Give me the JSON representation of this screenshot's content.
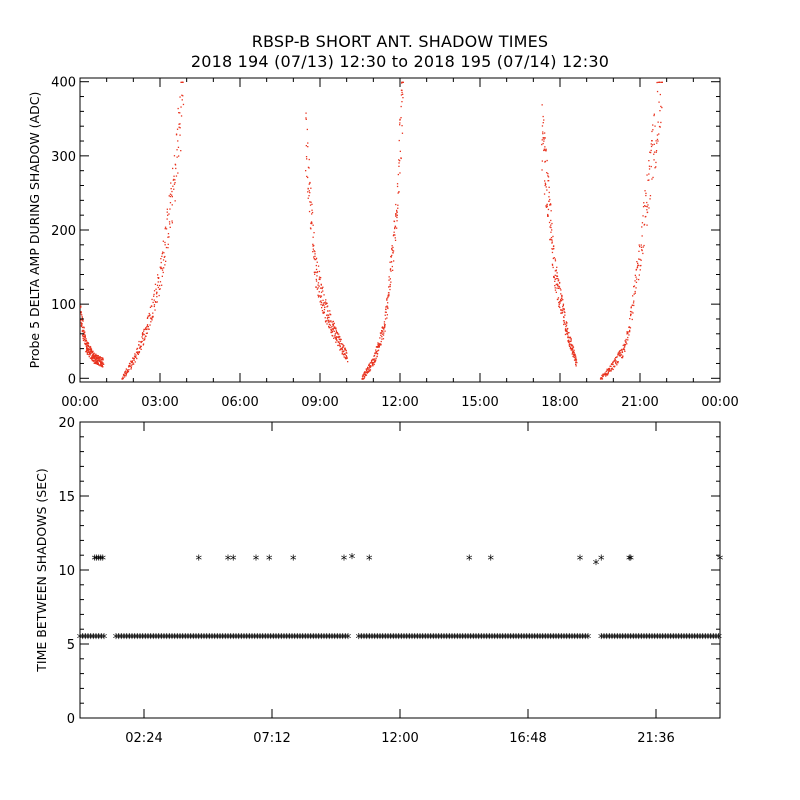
{
  "title": "RBSP-B SHORT ANT. SHADOW TIMES",
  "subtitle": "2018 194 (07/13) 12:30 to 2018 195 (07/14) 12:30",
  "chart_data": [
    {
      "type": "scatter",
      "ylabel": "Probe 5 DELTA AMP DURING SHADOW (ADC)",
      "xlabel": "",
      "x_unit": "hours",
      "xlim": [
        0,
        24
      ],
      "ylim": [
        -5,
        405
      ],
      "x_tick_labels": [
        "00:00",
        "03:00",
        "06:00",
        "09:00",
        "12:00",
        "15:00",
        "18:00",
        "21:00",
        "00:00"
      ],
      "y_tick_labels": [
        "0",
        "100",
        "200",
        "300",
        "400"
      ],
      "marker_color": "#e8321e",
      "segments": [
        {
          "x": [
            0.0,
            0.2,
            0.5,
            0.85
          ],
          "y": [
            85,
            45,
            28,
            22
          ]
        },
        {
          "x": [
            1.55,
            2.0,
            2.5,
            3.0,
            3.5,
            3.85
          ],
          "y": [
            0,
            25,
            70,
            140,
            260,
            400
          ]
        },
        {
          "x": [
            8.45,
            8.8,
            9.2,
            9.7,
            10.0
          ],
          "y": [
            320,
            150,
            90,
            50,
            30
          ]
        },
        {
          "x": [
            10.55,
            11.0,
            11.4,
            11.8,
            12.1
          ],
          "y": [
            0,
            25,
            70,
            200,
            400
          ]
        },
        {
          "x": [
            17.3,
            17.8,
            18.2,
            18.6
          ],
          "y": [
            330,
            140,
            70,
            20
          ]
        },
        {
          "x": [
            19.5,
            19.9,
            20.4,
            20.8,
            21.3,
            21.8
          ],
          "y": [
            0,
            15,
            40,
            120,
            260,
            400
          ]
        }
      ]
    },
    {
      "type": "scatter",
      "ylabel": "TIME BETWEEN SHADOWS (SEC)",
      "xlabel": "",
      "x_unit": "hours",
      "xlim": [
        0,
        24
      ],
      "ylim": [
        0,
        20
      ],
      "x_tick_labels": [
        "02:24",
        "07:12",
        "12:00",
        "16:48",
        "21:36"
      ],
      "y_tick_labels": [
        "0",
        "5",
        "10",
        "15",
        "20"
      ],
      "marker": "*",
      "marker_color": "#000000",
      "series": [
        {
          "x": [
            0.55,
            0.62,
            0.7,
            0.78,
            0.85,
            4.45,
            5.55,
            5.75,
            6.6,
            7.1,
            8.0,
            9.9,
            10.2,
            10.85,
            14.6,
            15.4,
            18.75,
            19.35,
            19.55,
            20.6,
            20.65,
            24.0
          ],
          "y": [
            10.7,
            10.7,
            10.7,
            10.7,
            10.7,
            10.7,
            10.7,
            10.7,
            10.7,
            10.7,
            10.7,
            10.7,
            10.8,
            10.7,
            10.7,
            10.7,
            10.7,
            10.4,
            10.7,
            10.7,
            10.7,
            10.7
          ]
        },
        {
          "x_ranges": [
            [
              0.0,
              0.95
            ],
            [
              1.35,
              10.1
            ],
            [
              10.45,
              19.1
            ],
            [
              19.55,
              24.0
            ]
          ],
          "y": 5.4
        }
      ]
    }
  ]
}
